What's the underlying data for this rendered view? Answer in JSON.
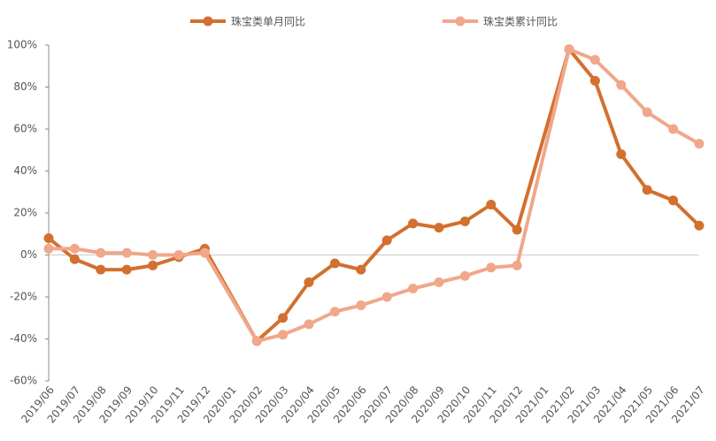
{
  "chart_data": {
    "type": "line",
    "categories": [
      "2019/06",
      "2019/07",
      "2019/08",
      "2019/09",
      "2019/10",
      "2019/11",
      "2019/12",
      "2020/01",
      "2020/02",
      "2020/03",
      "2020/04",
      "2020/05",
      "2020/06",
      "2020/07",
      "2020/08",
      "2020/09",
      "2020/10",
      "2020/11",
      "2020/12",
      "2021/01",
      "2021/02",
      "2021/03",
      "2021/04",
      "2021/05",
      "2021/06",
      "2021/07"
    ],
    "series": [
      {
        "name": "珠宝类单月同比",
        "color": "#d2702f",
        "values": [
          8,
          -2,
          -7,
          -7,
          -5,
          -1,
          3,
          null,
          -41,
          -30,
          -13,
          -4,
          -7,
          7,
          15,
          13,
          16,
          24,
          12,
          null,
          98,
          83,
          48,
          31,
          26,
          14
        ]
      },
      {
        "name": "珠宝类累计同比",
        "color": "#f0a78a",
        "values": [
          3,
          3,
          1,
          1,
          0,
          0,
          1,
          null,
          -41,
          -38,
          -33,
          -27,
          -24,
          -20,
          -16,
          -13,
          -10,
          -6,
          -5,
          null,
          98,
          93,
          81,
          68,
          60,
          53
        ]
      }
    ],
    "ylim": [
      -60,
      100
    ],
    "yticks": [
      {
        "value": -60,
        "label": "-60%"
      },
      {
        "value": -40,
        "label": "-40%"
      },
      {
        "value": -20,
        "label": "-20%"
      },
      {
        "value": 0,
        "label": "0%"
      },
      {
        "value": 20,
        "label": "20%"
      },
      {
        "value": 40,
        "label": "40%"
      },
      {
        "value": 60,
        "label": "60%"
      },
      {
        "value": 80,
        "label": "80%"
      },
      {
        "value": 100,
        "label": "100%"
      }
    ],
    "legend": "top"
  }
}
